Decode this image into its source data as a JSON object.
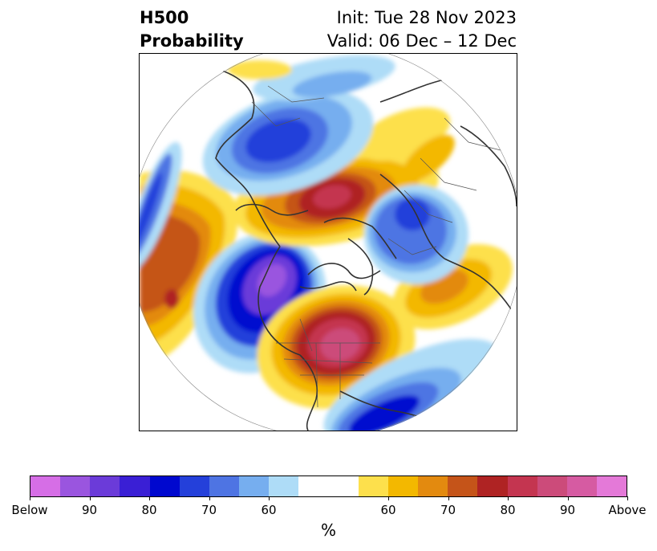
{
  "header": {
    "title_line1": "H500",
    "title_line2": "Probability",
    "init_label": "Init: Tue 28 Nov 2023",
    "valid_label": "Valid: 06 Dec – 12 Dec"
  },
  "map": {
    "projection": "north-polar-stereographic",
    "variable": "H500 probability",
    "anomaly_centers": [
      {
        "region": "Western North America",
        "category": "below",
        "max_probability": 90
      },
      {
        "region": "Great Lakes / Eastern US",
        "category": "above",
        "max_probability": 90
      },
      {
        "region": "Gulf of Alaska / Pacific",
        "category": "above",
        "max_probability": 80
      },
      {
        "region": "Eastern Siberia",
        "category": "above",
        "max_probability": 80
      },
      {
        "region": "Western Russia",
        "category": "below",
        "max_probability": 70
      },
      {
        "region": "Scandinavia / Northern Europe",
        "category": "below",
        "max_probability": 80
      },
      {
        "region": "Western Atlantic",
        "category": "below",
        "max_probability": 80
      }
    ]
  },
  "colorbar": {
    "unit_label": "%",
    "colors": [
      "#d66ee6",
      "#9a55df",
      "#6b3bd9",
      "#3a1fd5",
      "#0008cf",
      "#2440da",
      "#4e74e3",
      "#76aeef",
      "#aedcf7",
      "#ffffff",
      "#ffffff",
      "#fde04c",
      "#f3b800",
      "#e38a0f",
      "#c55419",
      "#af2323",
      "#c43550",
      "#cc4b7a",
      "#d65ba2",
      "#e479d8"
    ],
    "tick_labels": [
      "Below",
      "90",
      "80",
      "70",
      "60",
      "60",
      "70",
      "80",
      "90",
      "Above"
    ]
  }
}
